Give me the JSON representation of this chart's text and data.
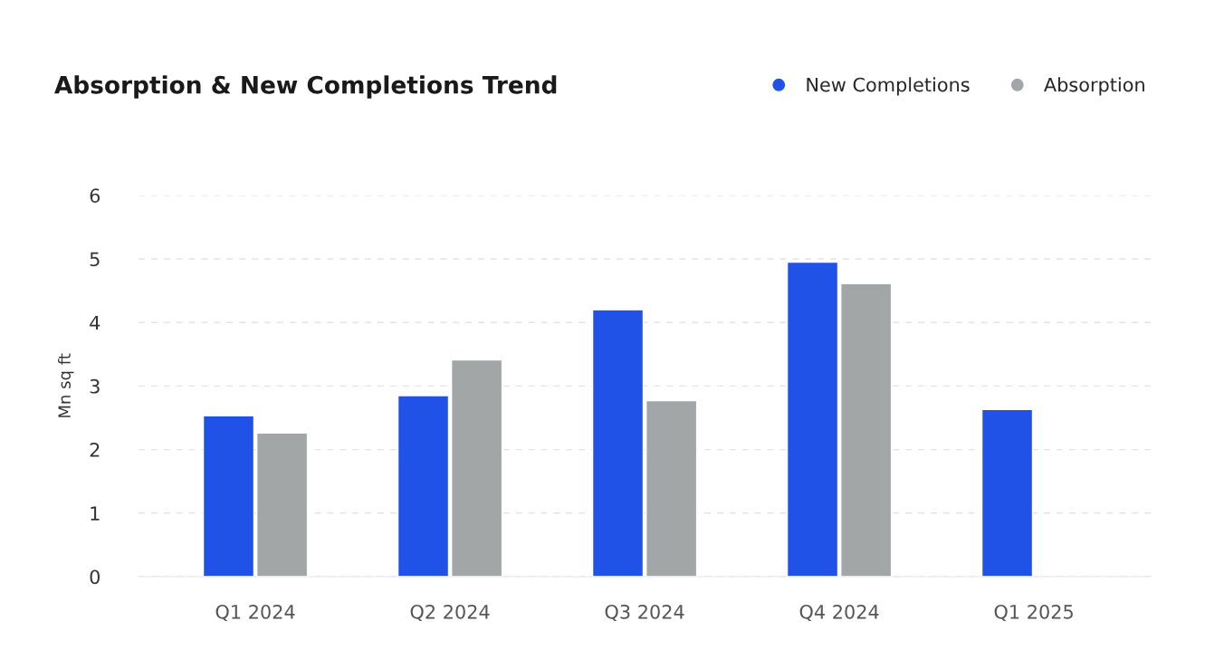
{
  "chart_data": {
    "type": "bar",
    "title": "Absorption & New Completions Trend",
    "ylabel": "Mn sq ft",
    "categories": [
      "Q1 2024",
      "Q2 2024",
      "Q3 2024",
      "Q4 2024",
      "Q1 2025"
    ],
    "series": [
      {
        "name": "New Completions",
        "color": "#2152e8",
        "values": [
          2.53,
          2.85,
          4.2,
          4.95,
          2.63
        ]
      },
      {
        "name": "Absorption",
        "color": "#a2a6a6",
        "values": [
          2.26,
          3.41,
          2.77,
          4.61,
          null
        ]
      }
    ],
    "ylim": [
      0,
      6
    ],
    "yticks": [
      0,
      1,
      2,
      3,
      4,
      5,
      6
    ],
    "grid": "y",
    "legend": "top right"
  }
}
